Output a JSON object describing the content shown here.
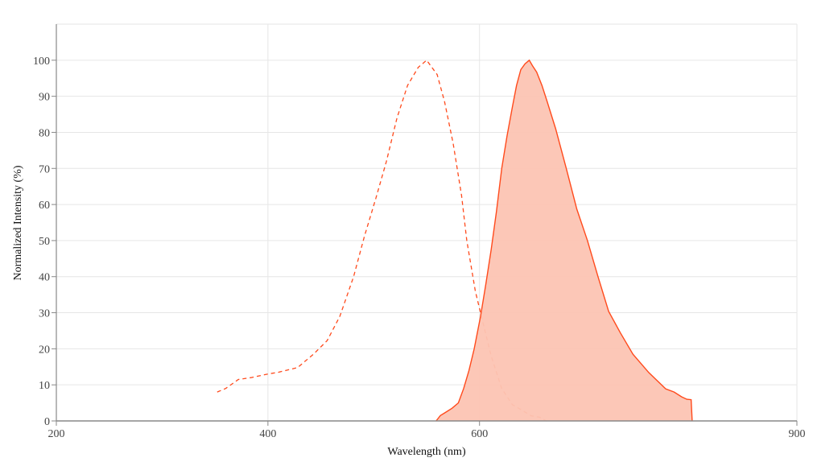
{
  "chart_data": {
    "type": "area",
    "xlabel": "Wavelength (nm)",
    "ylabel": "Normalized Intensity (%)",
    "xlim": [
      200,
      900
    ],
    "ylim": [
      0,
      110
    ],
    "xticks": [
      200,
      400,
      600,
      900
    ],
    "yticks": [
      0,
      10,
      20,
      30,
      40,
      50,
      60,
      70,
      80,
      90,
      100
    ],
    "grid": true,
    "colors": {
      "line": "#ff4a1c",
      "fill": "#fcc4b3",
      "grid": "#e6e6e6",
      "axis": "#888888"
    },
    "series": [
      {
        "style": "dashed",
        "x": [
          352,
          360,
          372,
          384,
          400,
          410,
          428,
          443,
          456,
          468,
          481,
          491,
          502,
          512,
          522,
          532,
          542,
          550,
          560,
          567,
          575,
          583,
          588,
          596,
          603,
          611,
          621,
          631,
          640,
          649,
          657,
          663
        ],
        "y": [
          8,
          9,
          11.5,
          12,
          13,
          13.5,
          14.8,
          18.5,
          22.3,
          29,
          40,
          51,
          61.7,
          72,
          84,
          93,
          98,
          100,
          96,
          88.5,
          77,
          62.5,
          50,
          36,
          27.5,
          18,
          9,
          4.5,
          3,
          1.4,
          1,
          0
        ]
      },
      {
        "style": "solid-filled",
        "x": [
          559,
          563,
          567,
          574,
          580,
          585,
          590,
          595,
          601,
          606,
          611,
          616,
          621,
          626,
          631,
          635,
          639,
          643,
          647,
          650,
          654,
          659,
          664,
          672,
          682,
          692,
          702,
          712,
          722,
          733,
          745,
          760,
          776,
          784,
          791,
          796,
          800,
          801
        ],
        "y": [
          0,
          1.5,
          2.2,
          3.5,
          5,
          9,
          14,
          20,
          29,
          38,
          47.5,
          58,
          70,
          79,
          87,
          93,
          97.4,
          99,
          100,
          98.5,
          96.7,
          93,
          88.5,
          81,
          70,
          58.7,
          50,
          40,
          30.4,
          24.5,
          18.5,
          13.4,
          8.9,
          8,
          6.7,
          6,
          5.9,
          0
        ]
      }
    ]
  }
}
